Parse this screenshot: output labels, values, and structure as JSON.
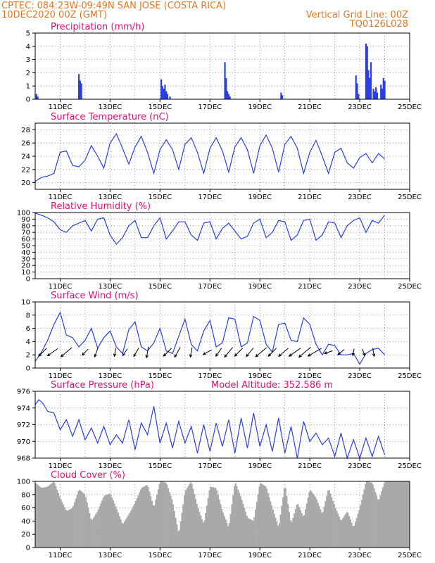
{
  "header": {
    "left_line1": "CPTEC:   084:23W-09:49N  SAN JOSE (COSTA RICA)",
    "left_line2": "10DEC2020 00Z (GMT)",
    "right_line1": "Vertical Grid Line: 00Z",
    "right_line2": "TQ0126L028"
  },
  "colors": {
    "header": "#e07820",
    "title": "#e0107a",
    "series": "#2a3fe0",
    "cloud": "#a9a9a9"
  },
  "x_ticks": [
    "11DEC",
    "13DEC",
    "15DEC",
    "17DEC",
    "19DEC",
    "21DEC",
    "23DEC",
    "25DEC"
  ],
  "chart_data": [
    {
      "id": "precip",
      "type": "bar",
      "title": "Precipitation (mm/h)",
      "ylim": [
        0,
        5
      ],
      "yticks": [
        0,
        1,
        2,
        3,
        4,
        5
      ],
      "x_days": [
        0.05,
        0.1,
        1.75,
        1.8,
        1.85,
        5.05,
        5.1,
        5.15,
        5.2,
        5.25,
        5.3,
        5.4,
        7.6,
        7.65,
        7.7,
        7.75,
        7.8,
        9.85,
        9.9,
        12.85,
        12.9,
        12.95,
        13.25,
        13.3,
        13.35,
        13.4,
        13.45,
        13.55,
        13.6,
        13.65,
        13.7,
        13.85,
        13.9,
        13.95,
        14.0
      ],
      "values": [
        0.4,
        0.2,
        1.9,
        1.4,
        1.2,
        1.5,
        1.0,
        0.8,
        1.1,
        0.6,
        0.4,
        0.2,
        2.8,
        1.6,
        0.6,
        0.4,
        0.2,
        0.5,
        0.3,
        1.8,
        1.2,
        0.4,
        4.2,
        4.0,
        2.2,
        1.6,
        2.8,
        0.8,
        0.6,
        0.9,
        0.5,
        1.1,
        0.8,
        1.6,
        1.4
      ]
    },
    {
      "id": "temp",
      "type": "line",
      "title": "Surface Temperature (nC)",
      "ylim": [
        19,
        29
      ],
      "yticks": [
        20,
        22,
        24,
        26,
        28
      ],
      "x_days": [
        0,
        0.25,
        0.5,
        0.75,
        1,
        1.25,
        1.5,
        1.75,
        2,
        2.25,
        2.5,
        2.75,
        3,
        3.25,
        3.5,
        3.75,
        4,
        4.25,
        4.5,
        4.75,
        5,
        5.25,
        5.5,
        5.75,
        6,
        6.25,
        6.5,
        6.75,
        7,
        7.25,
        7.5,
        7.75,
        8,
        8.25,
        8.5,
        8.75,
        9,
        9.25,
        9.5,
        9.75,
        10,
        10.25,
        10.5,
        10.75,
        11,
        11.25,
        11.5,
        11.75,
        12,
        12.25,
        12.5,
        12.75,
        13,
        13.25,
        13.5,
        13.75,
        14
      ],
      "values": [
        20.2,
        20.8,
        21.0,
        21.4,
        24.6,
        24.8,
        22.6,
        22.4,
        23.4,
        25.6,
        24.0,
        22.2,
        26.0,
        27.4,
        25.2,
        22.8,
        25.4,
        27.0,
        24.6,
        21.4,
        25.0,
        26.5,
        25.0,
        22.0,
        25.8,
        26.8,
        24.6,
        21.4,
        25.2,
        26.8,
        24.8,
        21.6,
        25.4,
        26.8,
        25.0,
        21.4,
        25.6,
        27.2,
        25.2,
        21.6,
        25.8,
        27.0,
        25.2,
        21.4,
        24.6,
        26.4,
        24.0,
        21.4,
        24.6,
        25.2,
        23.0,
        22.2,
        23.8,
        24.4,
        23.0,
        24.4,
        23.6
      ]
    },
    {
      "id": "rh",
      "type": "line",
      "title": "Relative Humidity (%)",
      "ylim": [
        0,
        100
      ],
      "yticks": [
        0,
        10,
        20,
        30,
        40,
        50,
        60,
        70,
        80,
        90,
        100
      ],
      "x_days": [
        0,
        0.25,
        0.5,
        0.75,
        1,
        1.25,
        1.5,
        1.75,
        2,
        2.25,
        2.5,
        2.75,
        3,
        3.25,
        3.5,
        3.75,
        4,
        4.25,
        4.5,
        4.75,
        5,
        5.25,
        5.5,
        5.75,
        6,
        6.25,
        6.5,
        6.75,
        7,
        7.25,
        7.5,
        7.75,
        8,
        8.25,
        8.5,
        8.75,
        9,
        9.25,
        9.5,
        9.75,
        10,
        10.25,
        10.5,
        10.75,
        11,
        11.25,
        11.5,
        11.75,
        12,
        12.25,
        12.5,
        12.75,
        13,
        13.25,
        13.5,
        13.75,
        14
      ],
      "values": [
        99,
        96,
        92,
        86,
        74,
        70,
        80,
        84,
        88,
        72,
        90,
        92,
        66,
        52,
        62,
        80,
        88,
        62,
        62,
        80,
        92,
        60,
        72,
        86,
        86,
        66,
        58,
        84,
        86,
        60,
        76,
        84,
        72,
        60,
        64,
        84,
        90,
        62,
        70,
        88,
        86,
        58,
        66,
        88,
        90,
        58,
        66,
        86,
        84,
        62,
        80,
        88,
        92,
        70,
        88,
        84,
        96
      ]
    },
    {
      "id": "wind",
      "type": "line",
      "title": "Surface Wind (m/s)",
      "ylim": [
        0,
        10
      ],
      "yticks": [
        0,
        2,
        4,
        6,
        8,
        10
      ],
      "x_days": [
        0,
        0.25,
        0.5,
        0.75,
        1,
        1.25,
        1.5,
        1.75,
        2,
        2.25,
        2.5,
        2.75,
        3,
        3.25,
        3.5,
        3.75,
        4,
        4.25,
        4.5,
        4.75,
        5,
        5.25,
        5.5,
        5.75,
        6,
        6.25,
        6.5,
        6.75,
        7,
        7.25,
        7.5,
        7.75,
        8,
        8.25,
        8.5,
        8.75,
        9,
        9.25,
        9.5,
        9.75,
        10,
        10.25,
        10.5,
        10.75,
        11,
        11.25,
        11.5,
        11.75,
        12,
        12.25,
        12.5,
        12.75,
        13,
        13.25,
        13.5,
        13.75,
        14
      ],
      "values": [
        1.0,
        2.4,
        4.2,
        6.6,
        8.4,
        5.0,
        4.6,
        3.2,
        4.2,
        6.0,
        3.0,
        4.6,
        5.6,
        3.2,
        2.2,
        5.8,
        7.0,
        3.2,
        2.6,
        3.8,
        6.0,
        2.6,
        2.2,
        4.8,
        7.4,
        3.6,
        2.6,
        5.6,
        7.2,
        3.2,
        3.8,
        7.6,
        7.4,
        3.2,
        3.8,
        7.8,
        7.2,
        3.6,
        2.4,
        6.6,
        6.8,
        4.2,
        4.0,
        7.6,
        6.6,
        3.6,
        2.0,
        3.6,
        3.4,
        2.0,
        2.0,
        2.2,
        0.6,
        2.2,
        2.8,
        3.0,
        2.0
      ],
      "arrows": {
        "x_days": [
          0.3,
          0.7,
          1.25,
          2.0,
          2.45,
          3.2,
          3.6,
          4.05,
          4.5,
          5.3,
          5.7,
          6.25,
          6.9,
          7.35,
          7.75,
          8.15,
          8.6,
          9.05,
          9.5,
          9.95,
          10.4,
          10.8,
          11.2,
          11.75,
          12.25,
          12.75,
          13.15,
          13.55
        ],
        "dir_deg": [
          45,
          35,
          40,
          45,
          70,
          80,
          55,
          60,
          80,
          45,
          60,
          80,
          30,
          55,
          50,
          45,
          50,
          40,
          45,
          40,
          35,
          40,
          30,
          20,
          40,
          80,
          110,
          100
        ],
        "speed": [
          4,
          4.5,
          5,
          3,
          3.5,
          3,
          3,
          3.5,
          4,
          4,
          4,
          3.5,
          3.5,
          3.5,
          4.5,
          4,
          4,
          5,
          4,
          4.5,
          5,
          5.5,
          5.5,
          3,
          3,
          2.5,
          2.5,
          3
        ]
      }
    },
    {
      "id": "pres",
      "type": "line",
      "title": "Surface Pressure (hPa)",
      "subtitle": "Model Altitude: 352.586 m",
      "ylim": [
        968,
        976
      ],
      "yticks": [
        968,
        970,
        972,
        974,
        976
      ],
      "x_days": [
        0,
        0.15,
        0.3,
        0.5,
        0.75,
        1,
        1.25,
        1.5,
        1.75,
        2,
        2.25,
        2.5,
        2.75,
        3,
        3.25,
        3.5,
        3.75,
        4,
        4.25,
        4.5,
        4.75,
        5,
        5.25,
        5.5,
        5.75,
        6,
        6.25,
        6.5,
        6.75,
        7,
        7.25,
        7.5,
        7.75,
        8,
        8.25,
        8.5,
        8.75,
        9,
        9.25,
        9.5,
        9.75,
        10,
        10.25,
        10.5,
        10.75,
        11,
        11.25,
        11.5,
        11.75,
        12,
        12.25,
        12.5,
        12.75,
        13,
        13.25,
        13.5,
        13.75,
        14
      ],
      "values": [
        974.4,
        975.0,
        974.6,
        973.6,
        973.4,
        971.4,
        972.6,
        970.6,
        972.6,
        970.2,
        971.6,
        969.8,
        971.8,
        969.6,
        970.8,
        969.8,
        972.6,
        969.0,
        972.2,
        970.8,
        974.2,
        969.8,
        972.2,
        969.2,
        972.4,
        969.8,
        971.8,
        968.6,
        972.0,
        968.8,
        972.2,
        969.4,
        972.6,
        968.6,
        972.8,
        969.2,
        973.4,
        969.4,
        972.0,
        968.8,
        972.8,
        968.6,
        971.8,
        968.0,
        972.4,
        970.0,
        971.0,
        969.6,
        970.4,
        968.2,
        971.0,
        968.0,
        970.2,
        968.0,
        970.4,
        968.2,
        970.6,
        968.4
      ]
    },
    {
      "id": "cloud",
      "type": "area",
      "title": "Cloud Cover (%)",
      "ylim": [
        0,
        100
      ],
      "yticks": [
        0,
        20,
        40,
        60,
        80,
        100
      ],
      "x_days": [
        0,
        0.25,
        0.5,
        0.75,
        1,
        1.25,
        1.5,
        1.75,
        2,
        2.25,
        2.5,
        2.75,
        3,
        3.25,
        3.5,
        3.75,
        4,
        4.25,
        4.5,
        4.75,
        5,
        5.25,
        5.5,
        5.75,
        6,
        6.25,
        6.5,
        6.75,
        7,
        7.25,
        7.5,
        7.75,
        8,
        8.25,
        8.5,
        8.75,
        9,
        9.25,
        9.5,
        9.75,
        10,
        10.25,
        10.5,
        10.75,
        11,
        11.25,
        11.5,
        11.75,
        12,
        12.25,
        12.5,
        12.75,
        13,
        13.25,
        13.5,
        13.75,
        14
      ],
      "values": [
        98,
        90,
        92,
        100,
        75,
        55,
        60,
        88,
        80,
        40,
        55,
        78,
        82,
        60,
        35,
        50,
        68,
        90,
        95,
        60,
        100,
        98,
        70,
        20,
        85,
        100,
        62,
        35,
        92,
        90,
        55,
        30,
        100,
        75,
        45,
        40,
        98,
        92,
        60,
        30,
        96,
        35,
        68,
        45,
        88,
        75,
        50,
        90,
        62,
        40,
        55,
        30,
        60,
        100,
        98,
        70,
        100
      ]
    }
  ]
}
